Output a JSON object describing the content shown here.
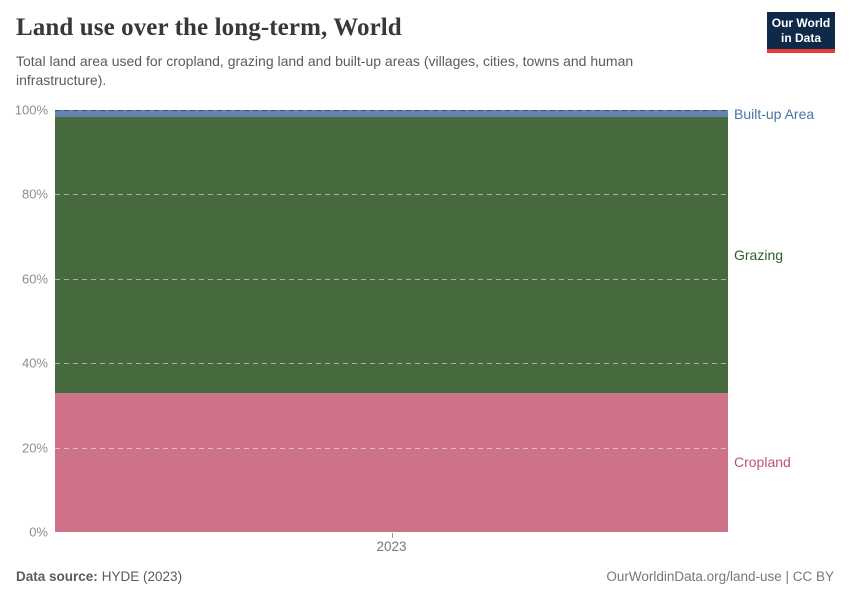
{
  "header": {
    "title": "Land use over the long-term, World",
    "subtitle": "Total land area used for cropland, grazing land and built-up areas (villages, cities, towns and human infrastructure).",
    "logo": {
      "line1": "Our World",
      "line2": "in Data",
      "bg_color": "#0f2949",
      "accent_color": "#e63e36"
    }
  },
  "chart_data": {
    "type": "area",
    "stacked": true,
    "percent_stacked": true,
    "title": "Land use over the long-term, World",
    "x": [
      "2023"
    ],
    "series": [
      {
        "name": "Cropland",
        "values": [
          33.0
        ],
        "color": "#ce7387",
        "label_color": "#c0536b"
      },
      {
        "name": "Grazing",
        "values": [
          65.3
        ],
        "color": "#47693e",
        "label_color": "#2f5d2c"
      },
      {
        "name": "Built-up Area",
        "values": [
          1.7
        ],
        "color": "#6383b1",
        "label_color": "#4a72a9"
      }
    ],
    "ylim": [
      0,
      100
    ],
    "yticks": [
      {
        "value": 0,
        "label": "0%",
        "line": false,
        "dark": false
      },
      {
        "value": 20,
        "label": "20%",
        "line": true,
        "dark": false
      },
      {
        "value": 40,
        "label": "40%",
        "line": true,
        "dark": false
      },
      {
        "value": 60,
        "label": "60%",
        "line": true,
        "dark": false
      },
      {
        "value": 80,
        "label": "80%",
        "line": true,
        "dark": false
      },
      {
        "value": 100,
        "label": "100%",
        "line": true,
        "dark": true
      }
    ],
    "xticks": [
      {
        "position": 0.5,
        "label": "2023"
      }
    ],
    "grid": true,
    "legend_position": "right-inline"
  },
  "footer": {
    "source_label": "Data source:",
    "source_value": "HYDE (2023)",
    "link": "OurWorldinData.org/land-use | CC BY"
  }
}
